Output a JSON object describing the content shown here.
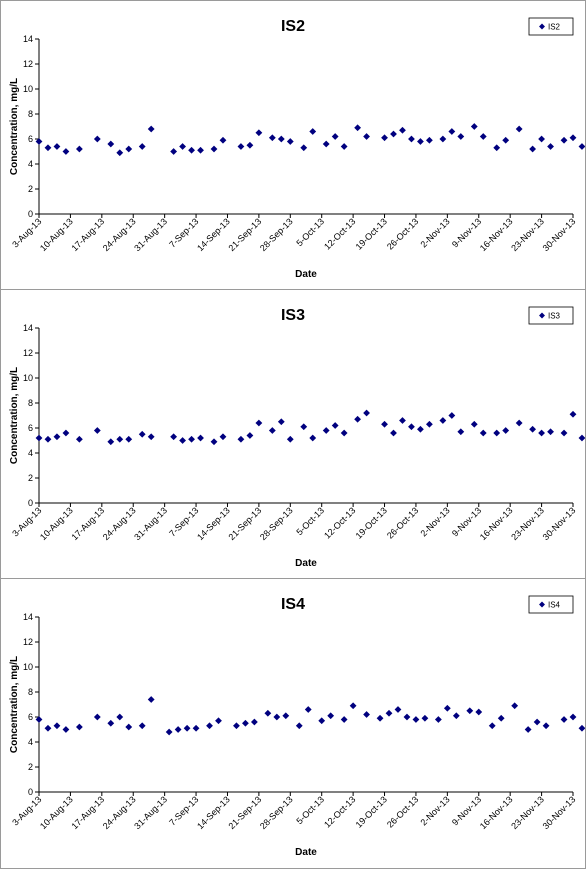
{
  "colors": {
    "marker": "#00007f",
    "axis": "#000000",
    "border": "#9a9a9a"
  },
  "chart_data": [
    {
      "type": "scatter",
      "title": "IS2",
      "xlabel": "Date",
      "ylabel": "Concentration, mg/L",
      "ylim": [
        0,
        14
      ],
      "yticks": [
        0,
        2,
        4,
        6,
        8,
        10,
        12,
        14
      ],
      "xlim": [
        "2013-08-03",
        "2013-11-30"
      ],
      "xtick_labels": [
        "3-Aug-13",
        "10-Aug-13",
        "17-Aug-13",
        "24-Aug-13",
        "31-Aug-13",
        "7-Sep-13",
        "14-Sep-13",
        "21-Sep-13",
        "28-Sep-13",
        "5-Oct-13",
        "12-Oct-13",
        "19-Oct-13",
        "26-Oct-13",
        "2-Nov-13",
        "9-Nov-13",
        "16-Nov-13",
        "23-Nov-13",
        "30-Nov-13"
      ],
      "grid": false,
      "legend_position": "top-right",
      "series": [
        {
          "name": "IS2",
          "x": [
            "2013-08-03",
            "2013-08-05",
            "2013-08-07",
            "2013-08-09",
            "2013-08-12",
            "2013-08-16",
            "2013-08-19",
            "2013-08-21",
            "2013-08-23",
            "2013-08-26",
            "2013-08-28",
            "2013-09-02",
            "2013-09-04",
            "2013-09-06",
            "2013-09-08",
            "2013-09-11",
            "2013-09-13",
            "2013-09-17",
            "2013-09-19",
            "2013-09-21",
            "2013-09-24",
            "2013-09-26",
            "2013-09-28",
            "2013-10-01",
            "2013-10-03",
            "2013-10-06",
            "2013-10-08",
            "2013-10-10",
            "2013-10-13",
            "2013-10-15",
            "2013-10-19",
            "2013-10-21",
            "2013-10-23",
            "2013-10-25",
            "2013-10-27",
            "2013-10-29",
            "2013-11-01",
            "2013-11-03",
            "2013-11-05",
            "2013-11-08",
            "2013-11-10",
            "2013-11-13",
            "2013-11-15",
            "2013-11-18",
            "2013-11-21",
            "2013-11-23",
            "2013-11-25",
            "2013-11-28",
            "2013-11-30",
            "2013-12-02"
          ],
          "y": [
            5.8,
            5.3,
            5.4,
            5.0,
            5.2,
            6.0,
            5.6,
            4.9,
            5.2,
            5.4,
            6.8,
            5.0,
            5.4,
            5.1,
            5.1,
            5.2,
            5.9,
            5.4,
            5.5,
            6.5,
            6.1,
            6.0,
            5.8,
            5.3,
            6.6,
            5.6,
            6.2,
            5.4,
            6.9,
            6.2,
            6.1,
            6.4,
            6.7,
            6.0,
            5.8,
            5.9,
            6.0,
            6.6,
            6.2,
            7.0,
            6.2,
            5.3,
            5.9,
            6.8,
            5.2,
            6.0,
            5.4,
            5.9,
            6.1,
            5.4
          ]
        }
      ]
    },
    {
      "type": "scatter",
      "title": "IS3",
      "xlabel": "Date",
      "ylabel": "Concentration, mg/L",
      "ylim": [
        0,
        14
      ],
      "yticks": [
        0,
        2,
        4,
        6,
        8,
        10,
        12,
        14
      ],
      "xlim": [
        "2013-08-03",
        "2013-11-30"
      ],
      "xtick_labels": [
        "3-Aug-13",
        "10-Aug-13",
        "17-Aug-13",
        "24-Aug-13",
        "31-Aug-13",
        "7-Sep-13",
        "14-Sep-13",
        "21-Sep-13",
        "28-Sep-13",
        "5-Oct-13",
        "12-Oct-13",
        "19-Oct-13",
        "26-Oct-13",
        "2-Nov-13",
        "9-Nov-13",
        "16-Nov-13",
        "23-Nov-13",
        "30-Nov-13"
      ],
      "grid": false,
      "legend_position": "top-right",
      "series": [
        {
          "name": "IS3",
          "x": [
            "2013-08-03",
            "2013-08-05",
            "2013-08-07",
            "2013-08-09",
            "2013-08-12",
            "2013-08-16",
            "2013-08-19",
            "2013-08-21",
            "2013-08-23",
            "2013-08-26",
            "2013-08-28",
            "2013-09-02",
            "2013-09-04",
            "2013-09-06",
            "2013-09-08",
            "2013-09-11",
            "2013-09-13",
            "2013-09-17",
            "2013-09-19",
            "2013-09-21",
            "2013-09-24",
            "2013-09-26",
            "2013-09-28",
            "2013-10-01",
            "2013-10-03",
            "2013-10-06",
            "2013-10-08",
            "2013-10-10",
            "2013-10-13",
            "2013-10-15",
            "2013-10-19",
            "2013-10-21",
            "2013-10-23",
            "2013-10-25",
            "2013-10-27",
            "2013-10-29",
            "2013-11-01",
            "2013-11-03",
            "2013-11-05",
            "2013-11-08",
            "2013-11-10",
            "2013-11-13",
            "2013-11-15",
            "2013-11-18",
            "2013-11-21",
            "2013-11-23",
            "2013-11-25",
            "2013-11-28",
            "2013-11-30",
            "2013-12-02"
          ],
          "y": [
            5.2,
            5.1,
            5.3,
            5.6,
            5.1,
            5.8,
            4.9,
            5.1,
            5.1,
            5.5,
            5.3,
            5.3,
            5.0,
            5.1,
            5.2,
            4.9,
            5.3,
            5.1,
            5.4,
            6.4,
            5.8,
            6.5,
            5.1,
            6.1,
            5.2,
            5.8,
            6.2,
            5.6,
            6.7,
            7.2,
            6.3,
            5.6,
            6.6,
            6.1,
            5.9,
            6.3,
            6.6,
            7.0,
            5.7,
            6.3,
            5.6,
            5.6,
            5.8,
            6.4,
            5.9,
            5.6,
            5.7,
            5.6,
            7.1,
            5.2
          ]
        }
      ]
    },
    {
      "type": "scatter",
      "title": "IS4",
      "xlabel": "Date",
      "ylabel": "Concentration, mg/L",
      "ylim": [
        0,
        14
      ],
      "yticks": [
        0,
        2,
        4,
        6,
        8,
        10,
        12,
        14
      ],
      "xlim": [
        "2013-08-03",
        "2013-11-30"
      ],
      "xtick_labels": [
        "3-Aug-13",
        "10-Aug-13",
        "17-Aug-13",
        "24-Aug-13",
        "31-Aug-13",
        "7-Sep-13",
        "14-Sep-13",
        "21-Sep-13",
        "28-Sep-13",
        "5-Oct-13",
        "12-Oct-13",
        "19-Oct-13",
        "26-Oct-13",
        "2-Nov-13",
        "9-Nov-13",
        "16-Nov-13",
        "23-Nov-13",
        "30-Nov-13"
      ],
      "grid": false,
      "legend_position": "top-right",
      "series": [
        {
          "name": "IS4",
          "x": [
            "2013-08-03",
            "2013-08-05",
            "2013-08-07",
            "2013-08-09",
            "2013-08-12",
            "2013-08-16",
            "2013-08-19",
            "2013-08-21",
            "2013-08-23",
            "2013-08-26",
            "2013-08-28",
            "2013-09-01",
            "2013-09-03",
            "2013-09-05",
            "2013-09-07",
            "2013-09-10",
            "2013-09-12",
            "2013-09-16",
            "2013-09-18",
            "2013-09-20",
            "2013-09-23",
            "2013-09-25",
            "2013-09-27",
            "2013-09-30",
            "2013-10-02",
            "2013-10-05",
            "2013-10-07",
            "2013-10-10",
            "2013-10-12",
            "2013-10-15",
            "2013-10-18",
            "2013-10-20",
            "2013-10-22",
            "2013-10-24",
            "2013-10-26",
            "2013-10-28",
            "2013-10-31",
            "2013-11-02",
            "2013-11-04",
            "2013-11-07",
            "2013-11-09",
            "2013-11-12",
            "2013-11-14",
            "2013-11-17",
            "2013-11-20",
            "2013-11-22",
            "2013-11-24",
            "2013-11-28",
            "2013-11-30",
            "2013-12-02"
          ],
          "y": [
            5.8,
            5.1,
            5.3,
            5.0,
            5.2,
            6.0,
            5.5,
            6.0,
            5.2,
            5.3,
            7.4,
            4.8,
            5.0,
            5.1,
            5.1,
            5.3,
            5.7,
            5.3,
            5.5,
            5.6,
            6.3,
            6.0,
            6.1,
            5.3,
            6.6,
            5.7,
            6.1,
            5.8,
            6.9,
            6.2,
            5.9,
            6.3,
            6.6,
            6.0,
            5.8,
            5.9,
            5.8,
            6.7,
            6.1,
            6.5,
            6.4,
            5.3,
            5.9,
            6.9,
            5.0,
            5.6,
            5.3,
            5.8,
            6.0,
            5.1
          ]
        }
      ]
    }
  ]
}
